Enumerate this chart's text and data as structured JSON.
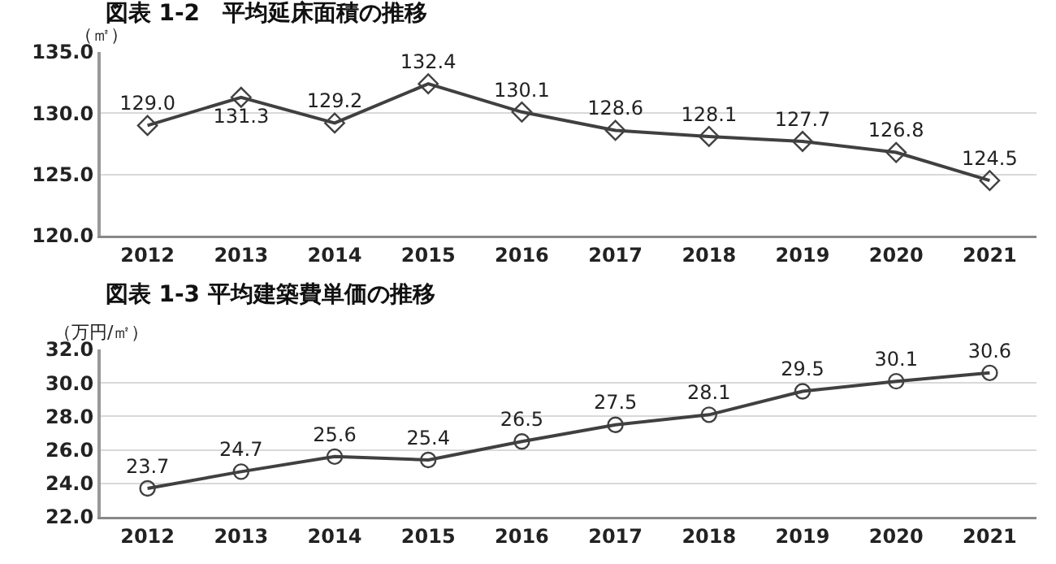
{
  "chart_data": [
    {
      "type": "line",
      "title": "図表 1-2　平均延床面積の推移",
      "ylabel": "（㎡）",
      "categories": [
        "2012",
        "2013",
        "2014",
        "2015",
        "2016",
        "2017",
        "2018",
        "2019",
        "2020",
        "2021"
      ],
      "series": [
        {
          "color": "#404040",
          "values": [
            129.0,
            131.3,
            129.2,
            132.4,
            130.1,
            128.6,
            128.1,
            127.7,
            126.8,
            124.5
          ],
          "value_labels": [
            "129.0",
            "131.3",
            "129.2",
            "132.4",
            "130.1",
            "128.6",
            "128.1",
            "127.7",
            "126.8",
            "124.5"
          ]
        }
      ],
      "ylim": [
        120,
        135
      ],
      "yticks": [
        {
          "value": 120,
          "label": "120.0"
        },
        {
          "value": 125,
          "label": "125.0"
        },
        {
          "value": 130,
          "label": "130.0"
        },
        {
          "value": 135,
          "label": "135.0"
        }
      ],
      "grid": "y",
      "legend": false,
      "marker": "diamond",
      "line_style": "solid"
    },
    {
      "type": "line",
      "title": "図表 1-3 平均建築費単価の推移",
      "ylabel": "（万円/㎡）",
      "categories": [
        "2012",
        "2013",
        "2014",
        "2015",
        "2016",
        "2017",
        "2018",
        "2019",
        "2020",
        "2021"
      ],
      "series": [
        {
          "color": "#404040",
          "values": [
            23.7,
            24.7,
            25.6,
            25.4,
            26.5,
            27.5,
            28.1,
            29.5,
            30.1,
            30.6
          ],
          "value_labels": [
            "23.7",
            "24.7",
            "25.6",
            "25.4",
            "26.5",
            "27.5",
            "28.1",
            "29.5",
            "30.1",
            "30.6"
          ]
        }
      ],
      "ylim": [
        22,
        32
      ],
      "yticks": [
        {
          "value": 22,
          "label": "22.0"
        },
        {
          "value": 24,
          "label": "24.0"
        },
        {
          "value": 26,
          "label": "26.0"
        },
        {
          "value": 28,
          "label": "28.0"
        },
        {
          "value": 30,
          "label": "30.0"
        },
        {
          "value": 32,
          "label": "32.0"
        }
      ],
      "grid": "y",
      "legend": false,
      "marker": "circle",
      "line_style": "solid"
    }
  ]
}
